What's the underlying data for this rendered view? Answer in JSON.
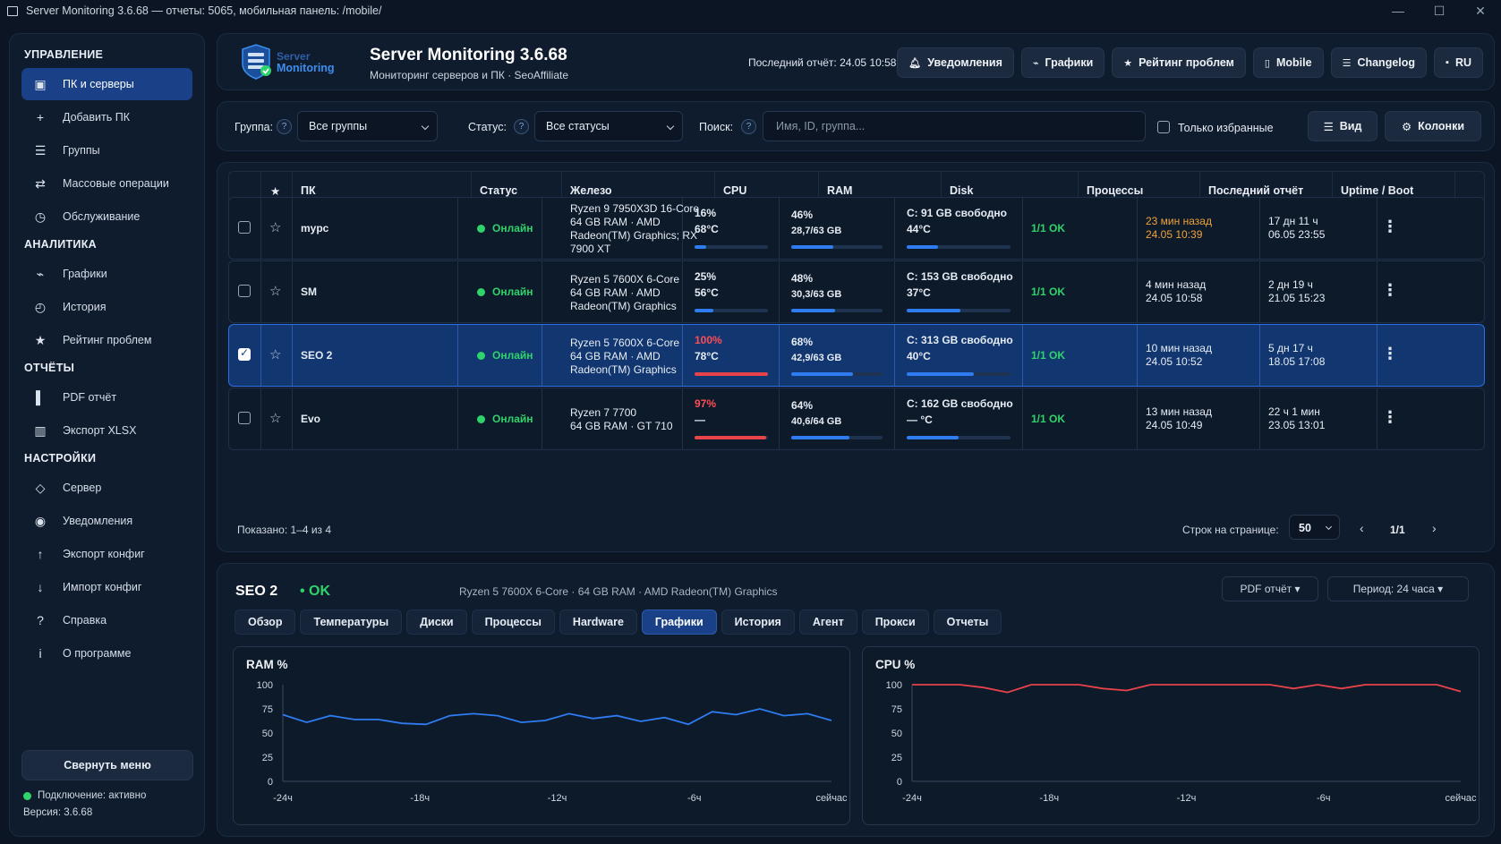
{
  "window": {
    "title": "Server Monitoring 3.6.68 — отчеты: 5065, мобильная панель: /mobile/"
  },
  "sidebar": {
    "sections": [
      {
        "title": "УПРАВЛЕНИЕ",
        "items": [
          {
            "label": "ПК и серверы",
            "icon": "computer-icon",
            "active": true
          },
          {
            "label": "Добавить ПК",
            "icon": "plus-icon"
          },
          {
            "label": "Группы",
            "icon": "list-icon"
          },
          {
            "label": "Массовые операции",
            "icon": "swap-icon"
          },
          {
            "label": "Обслуживание",
            "icon": "clock-icon"
          }
        ]
      },
      {
        "title": "АНАЛИТИКА",
        "items": [
          {
            "label": "Графики",
            "icon": "trend-icon"
          },
          {
            "label": "История",
            "icon": "history-icon"
          },
          {
            "label": "Рейтинг проблем",
            "icon": "star-icon"
          }
        ]
      },
      {
        "title": "ОТЧЁТЫ",
        "items": [
          {
            "label": "PDF отчёт",
            "icon": "pdf-icon"
          },
          {
            "label": "Экспорт XLSX",
            "icon": "table-icon"
          }
        ]
      },
      {
        "title": "НАСТРОЙКИ",
        "items": [
          {
            "label": "Сервер",
            "icon": "diamond-icon"
          },
          {
            "label": "Уведомления",
            "icon": "bell-icon"
          },
          {
            "label": "Экспорт конфиг",
            "icon": "arrow-up-icon"
          },
          {
            "label": "Импорт конфиг",
            "icon": "arrow-down-icon"
          },
          {
            "label": "Справка",
            "icon": "question-icon"
          },
          {
            "label": "О программе",
            "icon": "info-icon"
          }
        ]
      }
    ],
    "collapse_label": "Свернуть меню",
    "connection": "Подключение: активно",
    "version": "Версия: 3.6.68"
  },
  "header": {
    "logo_text_1": "Server",
    "logo_text_2": "Monitoring",
    "title": "Server Monitoring 3.6.68",
    "subtitle": "Мониторинг серверов и ПК · SeoAffiliate",
    "last_report": "Последний отчёт: 24.05 10:58",
    "buttons": [
      {
        "label": "Уведомления",
        "icon": "bell-icon",
        "glyph": "🔔︎"
      },
      {
        "label": "Графики",
        "icon": "trend-icon",
        "glyph": "⌁"
      },
      {
        "label": "Рейтинг проблем",
        "icon": "star-icon",
        "glyph": "★"
      },
      {
        "label": "Mobile",
        "icon": "phone-icon",
        "glyph": "▯"
      },
      {
        "label": "Changelog",
        "icon": "list-icon",
        "glyph": "☰"
      },
      {
        "label": "RU",
        "icon": "flag-icon",
        "glyph": "▪"
      }
    ]
  },
  "filters": {
    "group_label": "Группа:",
    "group_value": "Все группы",
    "status_label": "Статус:",
    "status_value": "Все статусы",
    "search_label": "Поиск:",
    "search_placeholder": "Имя, ID, группа...",
    "favorites_label": "Только избранные",
    "view_label": "Вид",
    "columns_label": "Колонки",
    "help": "?"
  },
  "table": {
    "headers": {
      "fav": "★",
      "pc": "ПК",
      "status": "Статус",
      "hw": "Железо",
      "cpu": "CPU",
      "ram": "RAM",
      "disk": "Disk",
      "proc": "Процессы",
      "last": "Последний отчёт",
      "uptime": "Uptime / Boot"
    },
    "rows": [
      {
        "name": "mypc",
        "status": "Онлайн",
        "hw": [
          "Ryzen 9 7950X3D 16-Core",
          "64 GB RAM · AMD",
          "Radeon(TM) Graphics; RX",
          "7900 XT"
        ],
        "cpu": "16%",
        "cpu_temp": "68°C",
        "cpu_pct": 16,
        "cpu_high": false,
        "ram": "46%",
        "ram_detail": "28,7/63 GB",
        "ram_pct": 46,
        "disk": "C: 91 GB свободно",
        "disk_temp": "44°C",
        "disk_pct": 30,
        "proc": "1/1 OK",
        "last_1": "23 мин назад",
        "last_2": "24.05 10:39",
        "last_warn": true,
        "up_1": "17 дн 11 ч",
        "up_2": "06.05 23:55",
        "checked": false
      },
      {
        "name": "SM",
        "status": "Онлайн",
        "hw": [
          "Ryzen 5 7600X 6-Core",
          "64 GB RAM · AMD",
          "Radeon(TM) Graphics"
        ],
        "cpu": "25%",
        "cpu_temp": "56°C",
        "cpu_pct": 25,
        "cpu_high": false,
        "ram": "48%",
        "ram_detail": "30,3/63 GB",
        "ram_pct": 48,
        "disk": "C: 153 GB свободно",
        "disk_temp": "37°C",
        "disk_pct": 52,
        "proc": "1/1 OK",
        "last_1": "4 мин назад",
        "last_2": "24.05 10:58",
        "last_warn": false,
        "up_1": "2 дн 19 ч",
        "up_2": "21.05 15:23",
        "checked": false
      },
      {
        "name": "SEO 2",
        "status": "Онлайн",
        "hw": [
          "Ryzen 5 7600X 6-Core",
          "64 GB RAM · AMD",
          "Radeon(TM) Graphics"
        ],
        "cpu": "100%",
        "cpu_temp": "78°C",
        "cpu_pct": 100,
        "cpu_high": true,
        "ram": "68%",
        "ram_detail": "42,9/63 GB",
        "ram_pct": 68,
        "disk": "C: 313 GB свободно",
        "disk_temp": "40°C",
        "disk_pct": 65,
        "proc": "1/1 OK",
        "last_1": "10 мин назад",
        "last_2": "24.05 10:52",
        "last_warn": false,
        "up_1": "5 дн 17 ч",
        "up_2": "18.05 17:08",
        "checked": true
      },
      {
        "name": "Evo",
        "status": "Онлайн",
        "hw": [
          "Ryzen 7 7700",
          "64 GB RAM · GT 710"
        ],
        "cpu": "97%",
        "cpu_temp": "—",
        "cpu_pct": 97,
        "cpu_high": true,
        "ram": "64%",
        "ram_detail": "40,6/64 GB",
        "ram_pct": 64,
        "disk": "C: 162 GB свободно",
        "disk_temp": "— °C",
        "disk_pct": 50,
        "proc": "1/1 OK",
        "last_1": "13 мин назад",
        "last_2": "24.05 10:49",
        "last_warn": false,
        "up_1": "22 ч 1 мин",
        "up_2": "23.05 13:01",
        "checked": false
      }
    ],
    "shown": "Показано: 1–4 из 4",
    "rows_per_page_label": "Строк на странице:",
    "rows_per_page": "50",
    "page": "1/1",
    "prev": "‹",
    "next": "›"
  },
  "detail": {
    "name": "SEO 2",
    "status": "• OK",
    "hw": "Ryzen 5 7600X 6-Core · 64 GB RAM · AMD Radeon(TM) Graphics",
    "pdf_button": "PDF отчёт ▾",
    "period_button": "Период: 24 часа ▾",
    "tabs": [
      "Обзор",
      "Температуры",
      "Диски",
      "Процессы",
      "Hardware",
      "Графики",
      "История",
      "Агент",
      "Прокси",
      "Отчеты"
    ],
    "active_tab": 5
  },
  "chart_data": [
    {
      "type": "line",
      "title": "RAM %",
      "x_ticks": [
        "-24ч",
        "-18ч",
        "-12ч",
        "-6ч",
        "сейчас"
      ],
      "y_ticks": [
        100,
        75,
        50,
        25,
        0
      ],
      "ylim": [
        0,
        100
      ],
      "series": [
        {
          "color": "#2f7bf0",
          "values": [
            69,
            61,
            68,
            64,
            64,
            60,
            59,
            68,
            70,
            68,
            61,
            63,
            70,
            65,
            68,
            62,
            66,
            59,
            72,
            69,
            75,
            68,
            70,
            63
          ]
        }
      ]
    },
    {
      "type": "line",
      "title": "CPU %",
      "x_ticks": [
        "-24ч",
        "-18ч",
        "-12ч",
        "-6ч",
        "сейчас"
      ],
      "y_ticks": [
        100,
        75,
        50,
        25,
        0
      ],
      "ylim": [
        0,
        100
      ],
      "series": [
        {
          "color": "#e8424b",
          "values": [
            100,
            100,
            100,
            97,
            92,
            100,
            100,
            100,
            96,
            94,
            100,
            100,
            100,
            100,
            100,
            100,
            96,
            100,
            96,
            100,
            100,
            100,
            100,
            93
          ]
        }
      ]
    }
  ]
}
